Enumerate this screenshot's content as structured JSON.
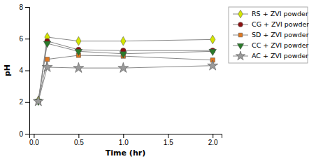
{
  "chart_data": {
    "type": "line",
    "xlabel": "Time (hr)",
    "ylabel": "pH",
    "x": [
      0.05,
      0.15,
      0.5,
      1.0,
      2.0
    ],
    "xlim": [
      -0.05,
      2.1
    ],
    "ylim": [
      0,
      8
    ],
    "xticks": [
      {
        "value": 0.0,
        "label": "0.0"
      },
      0.5,
      {
        "value": 1.0,
        "label": "1.0"
      },
      1.5,
      {
        "value": 2.0,
        "label": "2.0"
      }
    ],
    "yticks": [
      0,
      2,
      4,
      6,
      8
    ],
    "grid": false,
    "legend": "right",
    "series": [
      {
        "name": "RS + ZVI powder",
        "color": "#d4e600",
        "marker": "diamond",
        "values": [
          2.1,
          6.1,
          5.85,
          5.85,
          5.95
        ]
      },
      {
        "name": "CG + ZVI powder",
        "color": "#8b1010",
        "marker": "circle",
        "values": [
          2.05,
          5.85,
          5.3,
          5.25,
          5.25
        ]
      },
      {
        "name": "SD + ZVI powder",
        "color": "#e07820",
        "marker": "square",
        "values": [
          2.05,
          4.7,
          4.95,
          4.9,
          4.65
        ]
      },
      {
        "name": "CC + ZVI powder",
        "color": "#2a7a2a",
        "marker": "triangle-down",
        "values": [
          2.05,
          5.7,
          5.2,
          5.05,
          5.2
        ]
      },
      {
        "name": "AC + ZVI powder",
        "color": "#999999",
        "marker": "star",
        "values": [
          2.05,
          4.2,
          4.15,
          4.15,
          4.3
        ]
      }
    ]
  }
}
